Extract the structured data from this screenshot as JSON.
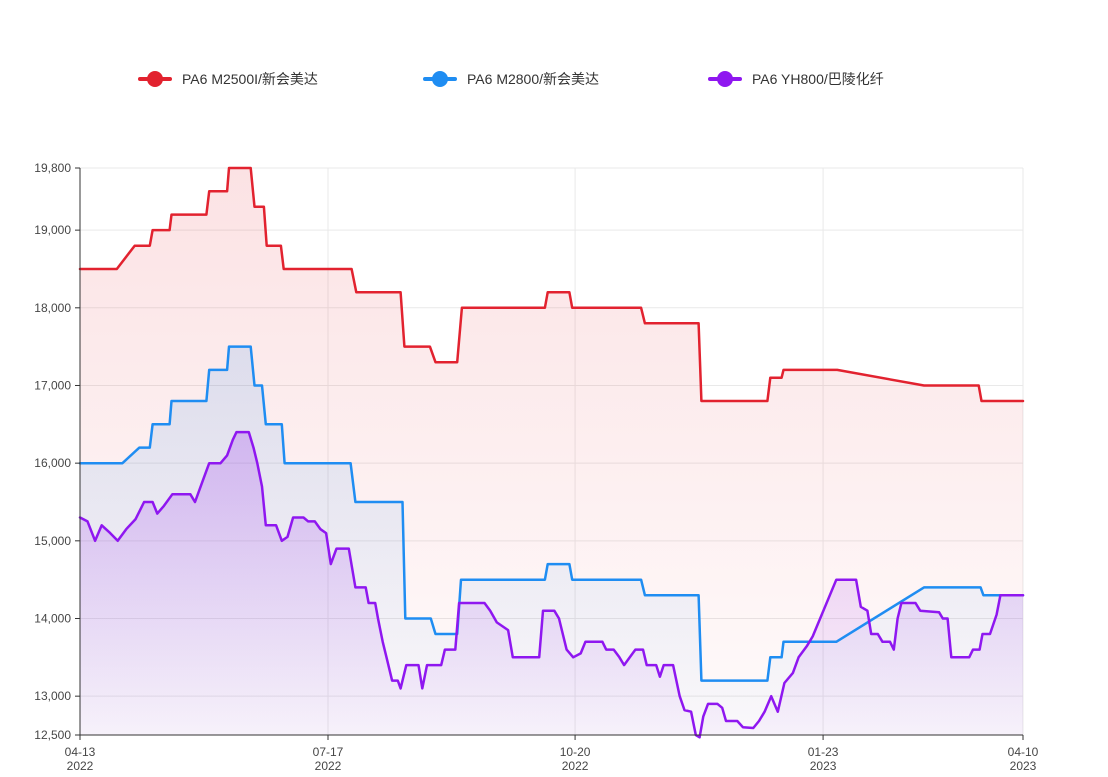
{
  "chart_data": {
    "type": "line",
    "title": "",
    "background": "#ffffff",
    "legend_position": "top",
    "grid_color": "#e9e9e9",
    "axis_color": "#333333",
    "x_axis": {
      "kind": "time",
      "start": "2022-04-13",
      "end": "2023-04-10",
      "ticks": [
        {
          "t": 0.0,
          "line1": "04-13",
          "line2": "2022",
          "grid": false
        },
        {
          "t": 0.263,
          "line1": "07-17",
          "line2": "2022",
          "grid": true
        },
        {
          "t": 0.525,
          "line1": "10-20",
          "line2": "2022",
          "grid": true
        },
        {
          "t": 0.788,
          "line1": "01-23",
          "line2": "2023",
          "grid": true
        },
        {
          "t": 1.0,
          "line1": "04-10",
          "line2": "2023",
          "grid": true
        }
      ]
    },
    "y_axis": {
      "min": 12500,
      "max": 19800,
      "ticks": [
        {
          "v": 12500,
          "label": "12,500",
          "grid": false
        },
        {
          "v": 13000,
          "label": "13,000",
          "grid": true
        },
        {
          "v": 14000,
          "label": "14,000",
          "grid": true
        },
        {
          "v": 15000,
          "label": "15,000",
          "grid": true
        },
        {
          "v": 16000,
          "label": "16,000",
          "grid": true
        },
        {
          "v": 17000,
          "label": "17,000",
          "grid": true
        },
        {
          "v": 18000,
          "label": "18,000",
          "grid": true
        },
        {
          "v": 19000,
          "label": "19,000",
          "grid": true
        },
        {
          "v": 19800,
          "label": "19,800",
          "grid": true
        }
      ]
    },
    "series": [
      {
        "name": "PA6 M2500I/新会美达",
        "color": "#e2222f",
        "points": [
          [
            0.0,
            18500
          ],
          [
            0.039,
            18500
          ],
          [
            0.058,
            18800
          ],
          [
            0.074,
            18800
          ],
          [
            0.077,
            19000
          ],
          [
            0.095,
            19000
          ],
          [
            0.097,
            19200
          ],
          [
            0.134,
            19200
          ],
          [
            0.137,
            19500
          ],
          [
            0.156,
            19500
          ],
          [
            0.158,
            19800
          ],
          [
            0.181,
            19800
          ],
          [
            0.185,
            19300
          ],
          [
            0.195,
            19300
          ],
          [
            0.198,
            18800
          ],
          [
            0.213,
            18800
          ],
          [
            0.216,
            18500
          ],
          [
            0.288,
            18500
          ],
          [
            0.293,
            18200
          ],
          [
            0.34,
            18200
          ],
          [
            0.344,
            17500
          ],
          [
            0.371,
            17500
          ],
          [
            0.377,
            17300
          ],
          [
            0.4,
            17300
          ],
          [
            0.405,
            18000
          ],
          [
            0.493,
            18000
          ],
          [
            0.496,
            18200
          ],
          [
            0.519,
            18200
          ],
          [
            0.522,
            18000
          ],
          [
            0.595,
            18000
          ],
          [
            0.599,
            17800
          ],
          [
            0.656,
            17800
          ],
          [
            0.659,
            16800
          ],
          [
            0.729,
            16800
          ],
          [
            0.732,
            17100
          ],
          [
            0.744,
            17100
          ],
          [
            0.746,
            17200
          ],
          [
            0.803,
            17200
          ],
          [
            0.895,
            17000
          ],
          [
            0.953,
            17000
          ],
          [
            0.956,
            16800
          ],
          [
            1.0,
            16800
          ]
        ]
      },
      {
        "name": "PA6 M2800/新会美达",
        "color": "#1f8df2",
        "points": [
          [
            0.0,
            16000
          ],
          [
            0.045,
            16000
          ],
          [
            0.063,
            16200
          ],
          [
            0.074,
            16200
          ],
          [
            0.077,
            16500
          ],
          [
            0.095,
            16500
          ],
          [
            0.097,
            16800
          ],
          [
            0.134,
            16800
          ],
          [
            0.137,
            17200
          ],
          [
            0.156,
            17200
          ],
          [
            0.158,
            17500
          ],
          [
            0.181,
            17500
          ],
          [
            0.185,
            17000
          ],
          [
            0.193,
            17000
          ],
          [
            0.197,
            16500
          ],
          [
            0.214,
            16500
          ],
          [
            0.217,
            16000
          ],
          [
            0.287,
            16000
          ],
          [
            0.292,
            15500
          ],
          [
            0.342,
            15500
          ],
          [
            0.345,
            14000
          ],
          [
            0.372,
            14000
          ],
          [
            0.377,
            13800
          ],
          [
            0.4,
            13800
          ],
          [
            0.404,
            14500
          ],
          [
            0.493,
            14500
          ],
          [
            0.496,
            14700
          ],
          [
            0.519,
            14700
          ],
          [
            0.522,
            14500
          ],
          [
            0.595,
            14500
          ],
          [
            0.599,
            14300
          ],
          [
            0.656,
            14300
          ],
          [
            0.659,
            13200
          ],
          [
            0.729,
            13200
          ],
          [
            0.732,
            13500
          ],
          [
            0.744,
            13500
          ],
          [
            0.746,
            13700
          ],
          [
            0.802,
            13700
          ],
          [
            0.895,
            14400
          ],
          [
            0.955,
            14400
          ],
          [
            0.958,
            14300
          ],
          [
            1.0,
            14300
          ]
        ]
      },
      {
        "name": "PA6 YH800/巴陵化纤",
        "color": "#8f17f0",
        "points": [
          [
            0.0,
            15300
          ],
          [
            0.008,
            15250
          ],
          [
            0.016,
            15000
          ],
          [
            0.023,
            15200
          ],
          [
            0.032,
            15100
          ],
          [
            0.04,
            15000
          ],
          [
            0.049,
            15150
          ],
          [
            0.059,
            15280
          ],
          [
            0.068,
            15500
          ],
          [
            0.077,
            15500
          ],
          [
            0.082,
            15350
          ],
          [
            0.089,
            15450
          ],
          [
            0.098,
            15600
          ],
          [
            0.117,
            15600
          ],
          [
            0.122,
            15500
          ],
          [
            0.131,
            15800
          ],
          [
            0.137,
            16000
          ],
          [
            0.149,
            16000
          ],
          [
            0.156,
            16100
          ],
          [
            0.162,
            16300
          ],
          [
            0.166,
            16400
          ],
          [
            0.179,
            16400
          ],
          [
            0.184,
            16200
          ],
          [
            0.188,
            16000
          ],
          [
            0.193,
            15700
          ],
          [
            0.197,
            15200
          ],
          [
            0.208,
            15200
          ],
          [
            0.214,
            15000
          ],
          [
            0.22,
            15050
          ],
          [
            0.226,
            15300
          ],
          [
            0.237,
            15300
          ],
          [
            0.242,
            15250
          ],
          [
            0.249,
            15250
          ],
          [
            0.255,
            15150
          ],
          [
            0.261,
            15100
          ],
          [
            0.266,
            14700
          ],
          [
            0.272,
            14900
          ],
          [
            0.285,
            14900
          ],
          [
            0.292,
            14400
          ],
          [
            0.303,
            14400
          ],
          [
            0.306,
            14200
          ],
          [
            0.313,
            14200
          ],
          [
            0.316,
            14000
          ],
          [
            0.321,
            13700
          ],
          [
            0.325,
            13500
          ],
          [
            0.331,
            13200
          ],
          [
            0.337,
            13200
          ],
          [
            0.34,
            13100
          ],
          [
            0.346,
            13400
          ],
          [
            0.359,
            13400
          ],
          [
            0.363,
            13100
          ],
          [
            0.368,
            13400
          ],
          [
            0.383,
            13400
          ],
          [
            0.387,
            13600
          ],
          [
            0.398,
            13600
          ],
          [
            0.402,
            14200
          ],
          [
            0.429,
            14200
          ],
          [
            0.435,
            14100
          ],
          [
            0.442,
            13950
          ],
          [
            0.454,
            13850
          ],
          [
            0.459,
            13500
          ],
          [
            0.487,
            13500
          ],
          [
            0.491,
            14100
          ],
          [
            0.503,
            14100
          ],
          [
            0.508,
            14000
          ],
          [
            0.516,
            13600
          ],
          [
            0.523,
            13500
          ],
          [
            0.531,
            13550
          ],
          [
            0.536,
            13700
          ],
          [
            0.554,
            13700
          ],
          [
            0.558,
            13600
          ],
          [
            0.566,
            13600
          ],
          [
            0.572,
            13500
          ],
          [
            0.577,
            13400
          ],
          [
            0.583,
            13500
          ],
          [
            0.589,
            13600
          ],
          [
            0.597,
            13600
          ],
          [
            0.601,
            13400
          ],
          [
            0.611,
            13400
          ],
          [
            0.615,
            13250
          ],
          [
            0.619,
            13400
          ],
          [
            0.629,
            13400
          ],
          [
            0.636,
            13000
          ],
          [
            0.641,
            12820
          ],
          [
            0.648,
            12800
          ],
          [
            0.653,
            12500
          ],
          [
            0.657,
            12470
          ],
          [
            0.661,
            12740
          ],
          [
            0.666,
            12900
          ],
          [
            0.676,
            12900
          ],
          [
            0.681,
            12850
          ],
          [
            0.685,
            12680
          ],
          [
            0.697,
            12680
          ],
          [
            0.703,
            12600
          ],
          [
            0.714,
            12590
          ],
          [
            0.72,
            12680
          ],
          [
            0.726,
            12800
          ],
          [
            0.733,
            13000
          ],
          [
            0.74,
            12800
          ],
          [
            0.747,
            13170
          ],
          [
            0.756,
            13300
          ],
          [
            0.762,
            13500
          ],
          [
            0.771,
            13650
          ],
          [
            0.777,
            13770
          ],
          [
            0.802,
            14500
          ],
          [
            0.813,
            14500
          ],
          [
            0.823,
            14500
          ],
          [
            0.828,
            14150
          ],
          [
            0.835,
            14100
          ],
          [
            0.839,
            13800
          ],
          [
            0.846,
            13800
          ],
          [
            0.851,
            13700
          ],
          [
            0.859,
            13700
          ],
          [
            0.863,
            13600
          ],
          [
            0.867,
            14000
          ],
          [
            0.871,
            14200
          ],
          [
            0.886,
            14200
          ],
          [
            0.891,
            14100
          ],
          [
            0.911,
            14080
          ],
          [
            0.915,
            14000
          ],
          [
            0.92,
            14000
          ],
          [
            0.924,
            13500
          ],
          [
            0.943,
            13500
          ],
          [
            0.947,
            13600
          ],
          [
            0.954,
            13600
          ],
          [
            0.957,
            13800
          ],
          [
            0.965,
            13800
          ],
          [
            0.972,
            14050
          ],
          [
            0.976,
            14300
          ],
          [
            1.0,
            14300
          ]
        ]
      }
    ]
  }
}
